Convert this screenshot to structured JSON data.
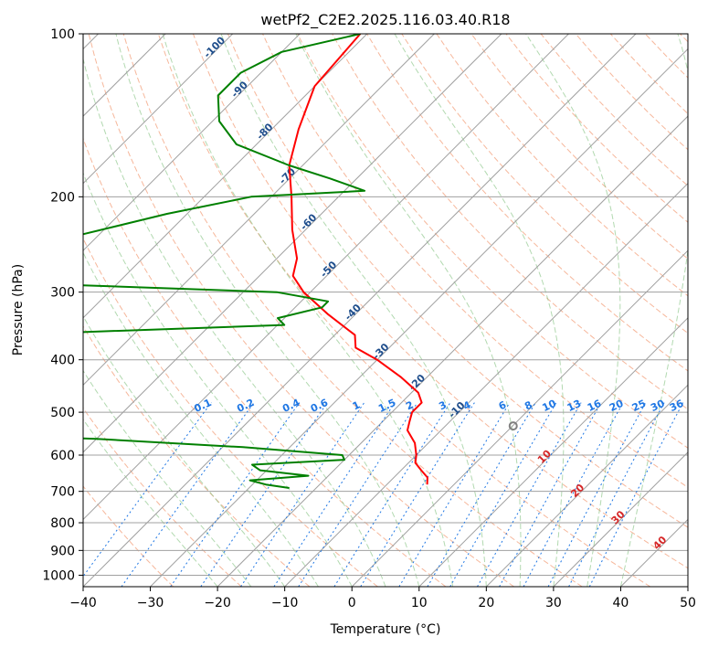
{
  "chart_data": {
    "type": "skew-t",
    "title": "wetPf2_C2E2.2025.116.03.40.R18",
    "xlabel": "Temperature (°C)",
    "ylabel": "Pressure (hPa)",
    "xlim": [
      -40,
      50
    ],
    "ylim": [
      1050,
      100
    ],
    "y_scale": "log",
    "skew_deg": 45,
    "grid": true,
    "x_ticks": [
      "−40",
      "−30",
      "−20",
      "−10",
      "0",
      "10",
      "20",
      "30",
      "40",
      "50"
    ],
    "x_tick_values": [
      -40,
      -30,
      -20,
      -10,
      0,
      10,
      20,
      30,
      40,
      50
    ],
    "y_ticks": [
      "100",
      "200",
      "300",
      "400",
      "500",
      "600",
      "700",
      "800",
      "900",
      "1000"
    ],
    "y_tick_values": [
      100,
      200,
      300,
      400,
      500,
      600,
      700,
      800,
      900,
      1000
    ],
    "isotherm_labels": [
      "-100",
      "-90",
      "-80",
      "-70",
      "-60",
      "-50",
      "-40",
      "-30",
      "-20",
      "-10"
    ],
    "isotherm_label_values": [
      -100,
      -90,
      -80,
      -70,
      -60,
      -50,
      -40,
      -30,
      -20,
      -10
    ],
    "mixing_ratio_labels": [
      "0.1",
      "0.2",
      "0.4",
      "0.6",
      "1",
      "1.5",
      "2",
      "3",
      "4",
      "6",
      "8",
      "10",
      "13",
      "16",
      "20",
      "25",
      "30",
      "36"
    ],
    "mixing_ratio_values": [
      0.1,
      0.2,
      0.4,
      0.6,
      1,
      1.5,
      2,
      3,
      4,
      6,
      8,
      10,
      13,
      16,
      20,
      25,
      30,
      36
    ],
    "mixing_ratio_label_pressure": 500,
    "warm_isotherm_labels": [
      "10",
      "20",
      "30",
      "40"
    ],
    "warm_isotherm_values": [
      10,
      20,
      30,
      40
    ],
    "warm_isotherm_label_pressures": [
      610,
      705,
      790,
      880
    ],
    "lcl_marker": {
      "pressure": 530,
      "temperature": 24
    },
    "series": [
      {
        "color": "#ff0000",
        "pressure": [
          100,
          125,
          150,
          175,
          200,
          230,
          260,
          280,
          300,
          330,
          360,
          380,
          400,
          430,
          460,
          480,
          500,
          520,
          540,
          570,
          600,
          620,
          640,
          660,
          680
        ],
        "temperature": [
          -81,
          -80,
          -76,
          -72,
          -67,
          -62,
          -57,
          -55,
          -51,
          -44,
          -37,
          -35,
          -30,
          -24,
          -19,
          -17,
          -17,
          -16,
          -15,
          -12,
          -10,
          -9,
          -7,
          -5,
          -4
        ]
      },
      {
        "color": "#008000",
        "pressure": [
          100,
          108,
          118,
          130,
          145,
          160,
          175,
          185,
          195,
          200,
          215,
          240,
          265,
          283,
          290,
          300,
          312,
          320,
          335,
          345,
          360,
          370,
          382,
          395,
          405,
          420,
          430,
          440,
          455,
          470,
          480,
          490,
          500,
          510,
          520,
          530,
          545,
          560,
          580,
          600,
          612,
          625,
          640,
          655,
          668,
          680,
          690
        ],
        "temperature": [
          -81,
          -90,
          -93,
          -93,
          -89,
          -83,
          -72,
          -64,
          -57,
          -73,
          -83,
          -95,
          -99,
          -99,
          -90,
          -55,
          -46,
          -46,
          -51,
          -49,
          -90,
          -90,
          -82,
          -97,
          -97,
          -89,
          -90,
          -88,
          -86,
          -100,
          -96,
          -80,
          -70,
          -92,
          -110,
          -104,
          -84,
          -60,
          -37,
          -21,
          -20,
          -33,
          -31,
          -23,
          -31,
          -28,
          -24
        ]
      }
    ]
  }
}
